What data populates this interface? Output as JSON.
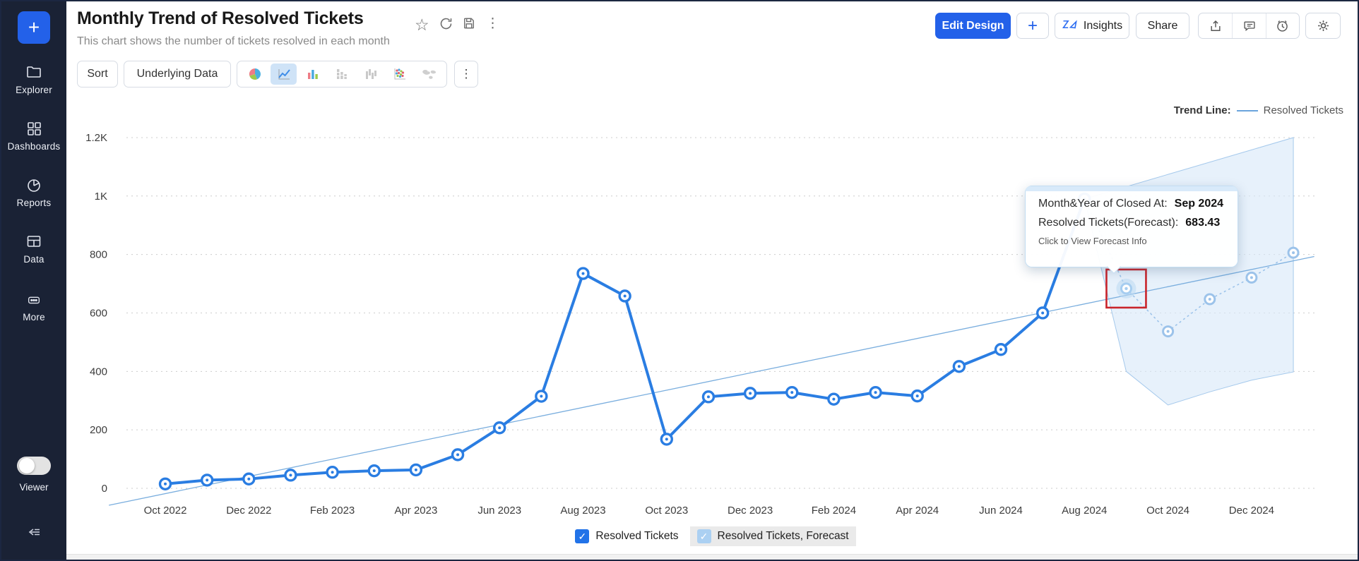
{
  "sidebar": {
    "plus_label": "+",
    "items": [
      {
        "label": "Explorer"
      },
      {
        "label": "Dashboards"
      },
      {
        "label": "Reports"
      },
      {
        "label": "Data"
      },
      {
        "label": "More"
      }
    ],
    "viewer_label": "Viewer"
  },
  "header": {
    "title": "Monthly Trend of Resolved Tickets",
    "subtitle": "This chart shows the number of tickets resolved in each month",
    "edit_design": "Edit Design",
    "add": "+",
    "insights": "Insights",
    "share": "Share",
    "kebab": "⋮",
    "star": "☆"
  },
  "toolbar": {
    "sort": "Sort",
    "underlying_data": "Underlying Data",
    "more": "⋮"
  },
  "trend_legend": {
    "label": "Trend Line:",
    "series": "Resolved Tickets"
  },
  "tooltip": {
    "row1_label": "Month&Year of Closed At:",
    "row1_value": "Sep 2024",
    "row2_label": "Resolved Tickets(Forecast):",
    "row2_value": "683.43",
    "footer": "Click to View Forecast Info"
  },
  "legend": {
    "series1": "Resolved Tickets",
    "series2": "Resolved Tickets, Forecast",
    "check": "✓"
  },
  "chart_data": {
    "type": "line",
    "title": "Monthly Trend of Resolved Tickets",
    "x_field": "Month&Year of Closed At",
    "y_field": "Resolved Tickets",
    "months": [
      "Oct 2022",
      "Nov 2022",
      "Dec 2022",
      "Jan 2023",
      "Feb 2023",
      "Mar 2023",
      "Apr 2023",
      "May 2023",
      "Jun 2023",
      "Jul 2023",
      "Aug 2023",
      "Sep 2023",
      "Oct 2023",
      "Nov 2023",
      "Dec 2023",
      "Jan 2024",
      "Feb 2024",
      "Mar 2024",
      "Apr 2024",
      "May 2024",
      "Jun 2024",
      "Jul 2024",
      "Aug 2024",
      "Sep 2024",
      "Oct 2024",
      "Nov 2024",
      "Dec 2024",
      "Jan 2025"
    ],
    "series": [
      {
        "name": "Resolved Tickets",
        "start_index": 0,
        "values": [
          15,
          28,
          32,
          45,
          55,
          60,
          63,
          115,
          207,
          315,
          735,
          658,
          168,
          313,
          325,
          328,
          305,
          328,
          316,
          417,
          475,
          600,
          990
        ]
      },
      {
        "name": "Resolved Tickets, Forecast",
        "start_index": 23,
        "values": [
          683.43,
          537,
          647,
          721,
          806
        ]
      }
    ],
    "trend_line": {
      "name": "Resolved Tickets (Trend)",
      "start": {
        "index": -1.35,
        "value": -58
      },
      "end": {
        "index": 27.5,
        "value": 793
      }
    },
    "forecast_band": {
      "start_index": 22,
      "upper": [
        990,
        1032,
        1074,
        1116,
        1158,
        1200
      ],
      "lower": [
        990,
        400,
        285,
        330,
        370,
        398
      ]
    },
    "y_ticks": [
      {
        "value": 0,
        "label": "0"
      },
      {
        "value": 200,
        "label": "200"
      },
      {
        "value": 400,
        "label": "400"
      },
      {
        "value": 600,
        "label": "600"
      },
      {
        "value": 800,
        "label": "800"
      },
      {
        "value": 1000,
        "label": "1K"
      },
      {
        "value": 1200,
        "label": "1.2K"
      }
    ],
    "x_tick_labels": [
      "Oct 2022",
      "Dec 2022",
      "Feb 2023",
      "Apr 2023",
      "Jun 2023",
      "Aug 2023",
      "Oct 2023",
      "Dec 2023",
      "Feb 2024",
      "Apr 2024",
      "Jun 2024",
      "Aug 2024",
      "Oct 2024",
      "Dec 2024"
    ],
    "ylim": [
      0,
      1300
    ],
    "legend_position": "bottom",
    "grid": true,
    "highlight": {
      "month": "Sep 2024",
      "value": 683.43,
      "index": 23
    },
    "colors": {
      "line": "#2a7de2",
      "forecast": "#9cc3ea",
      "trend": "#7aaede",
      "band_fill": "#d9e9f8",
      "band_stroke": "#a5c9ec",
      "grid": "#cccccc",
      "highlight_box": "#c9242b"
    }
  }
}
